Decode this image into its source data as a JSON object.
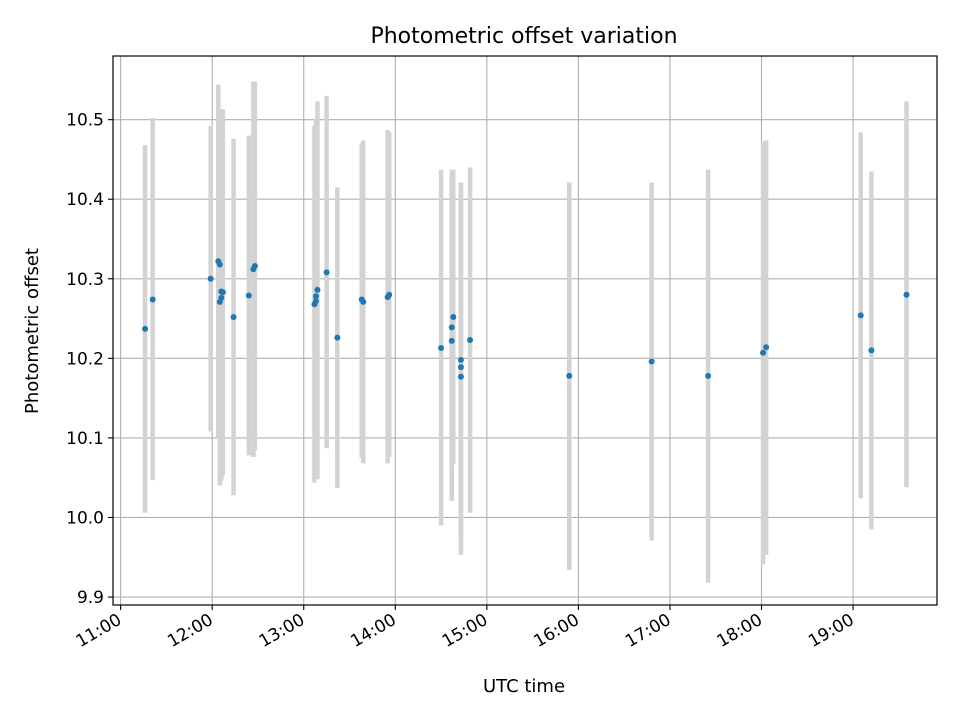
{
  "chart_data": {
    "type": "scatter",
    "title": "Photometric offset variation",
    "xlabel": "UTC time",
    "ylabel": "Photometric offset",
    "x_unit": "UTC time (HH:MM)",
    "xlim": [
      "10:55",
      "19:55"
    ],
    "ylim": [
      9.89,
      10.58
    ],
    "xticks": [
      "11:00",
      "12:00",
      "13:00",
      "14:00",
      "15:00",
      "16:00",
      "17:00",
      "18:00",
      "19:00"
    ],
    "yticks": [
      9.9,
      10.0,
      10.1,
      10.2,
      10.3,
      10.4,
      10.5
    ],
    "ytick_labels": [
      "9.9",
      "10.0",
      "10.1",
      "10.2",
      "10.3",
      "10.4",
      "10.5"
    ],
    "grid": true,
    "colors": {
      "point": "#1f77b4",
      "errorbar": "#d3d3d3",
      "grid": "#b0b0b0"
    },
    "points": [
      {
        "x": "11:16",
        "y": 10.237,
        "lo": 10.006,
        "hi": 10.468
      },
      {
        "x": "11:21",
        "y": 10.274,
        "lo": 10.047,
        "hi": 10.502
      },
      {
        "x": "11:59",
        "y": 10.3,
        "lo": 10.108,
        "hi": 10.492
      },
      {
        "x": "12:04",
        "y": 10.322,
        "lo": 10.1,
        "hi": 10.544
      },
      {
        "x": "12:05",
        "y": 10.318,
        "lo": 10.125,
        "hi": 10.511
      },
      {
        "x": "12:05",
        "y": 10.271,
        "lo": 10.04,
        "hi": 10.502
      },
      {
        "x": "12:06",
        "y": 10.276,
        "lo": 10.046,
        "hi": 10.506
      },
      {
        "x": "12:06",
        "y": 10.284,
        "lo": 10.055,
        "hi": 10.513
      },
      {
        "x": "12:07",
        "y": 10.283,
        "lo": 10.053,
        "hi": 10.513
      },
      {
        "x": "12:14",
        "y": 10.252,
        "lo": 10.028,
        "hi": 10.476
      },
      {
        "x": "12:24",
        "y": 10.279,
        "lo": 10.078,
        "hi": 10.48
      },
      {
        "x": "12:27",
        "y": 10.312,
        "lo": 10.076,
        "hi": 10.548
      },
      {
        "x": "12:28",
        "y": 10.316,
        "lo": 10.084,
        "hi": 10.548
      },
      {
        "x": "13:07",
        "y": 10.268,
        "lo": 10.044,
        "hi": 10.492
      },
      {
        "x": "13:08",
        "y": 10.272,
        "lo": 10.05,
        "hi": 10.494
      },
      {
        "x": "13:08",
        "y": 10.278,
        "lo": 10.055,
        "hi": 10.5
      },
      {
        "x": "13:09",
        "y": 10.286,
        "lo": 10.048,
        "hi": 10.523
      },
      {
        "x": "13:15",
        "y": 10.308,
        "lo": 10.087,
        "hi": 10.53
      },
      {
        "x": "13:22",
        "y": 10.226,
        "lo": 10.037,
        "hi": 10.415
      },
      {
        "x": "13:38",
        "y": 10.274,
        "lo": 10.075,
        "hi": 10.47
      },
      {
        "x": "13:39",
        "y": 10.271,
        "lo": 10.068,
        "hi": 10.474
      },
      {
        "x": "13:55",
        "y": 10.277,
        "lo": 10.068,
        "hi": 10.487
      },
      {
        "x": "13:56",
        "y": 10.28,
        "lo": 10.076,
        "hi": 10.484
      },
      {
        "x": "14:30",
        "y": 10.213,
        "lo": 9.99,
        "hi": 10.437
      },
      {
        "x": "14:37",
        "y": 10.222,
        "lo": 10.021,
        "hi": 10.423
      },
      {
        "x": "14:37",
        "y": 10.239,
        "lo": 10.04,
        "hi": 10.437
      },
      {
        "x": "14:38",
        "y": 10.252,
        "lo": 10.067,
        "hi": 10.437
      },
      {
        "x": "14:43",
        "y": 10.198,
        "lo": 9.975,
        "hi": 10.421
      },
      {
        "x": "14:43",
        "y": 10.189,
        "lo": 9.953,
        "hi": 10.421
      },
      {
        "x": "14:43",
        "y": 10.177,
        "lo": 9.96,
        "hi": 10.395
      },
      {
        "x": "14:49",
        "y": 10.223,
        "lo": 10.006,
        "hi": 10.44
      },
      {
        "x": "15:54",
        "y": 10.178,
        "lo": 9.934,
        "hi": 10.421
      },
      {
        "x": "16:48",
        "y": 10.196,
        "lo": 9.971,
        "hi": 10.421
      },
      {
        "x": "17:25",
        "y": 10.178,
        "lo": 9.918,
        "hi": 10.437
      },
      {
        "x": "18:01",
        "y": 10.207,
        "lo": 9.941,
        "hi": 10.472
      },
      {
        "x": "18:03",
        "y": 10.214,
        "lo": 9.953,
        "hi": 10.474
      },
      {
        "x": "19:05",
        "y": 10.254,
        "lo": 10.024,
        "hi": 10.484
      },
      {
        "x": "19:12",
        "y": 10.21,
        "lo": 9.985,
        "hi": 10.435
      },
      {
        "x": "19:35",
        "y": 10.28,
        "lo": 10.038,
        "hi": 10.523
      }
    ]
  }
}
